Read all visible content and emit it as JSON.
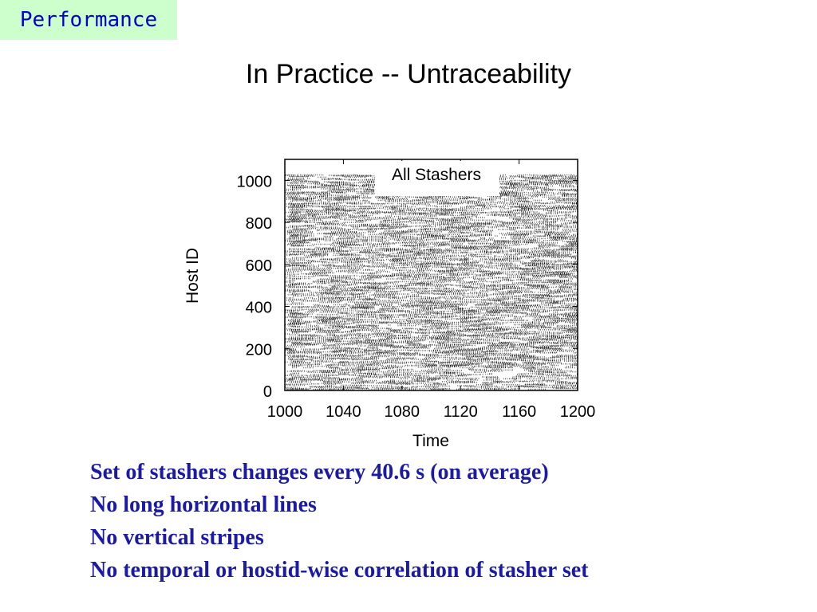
{
  "section_tag": "Performance",
  "slide_title": "In Practice -- Untraceability",
  "chart_data": {
    "type": "scatter",
    "title": "All Stashers",
    "xlabel": "Time",
    "ylabel": "Host ID",
    "xlim": [
      1000,
      1200
    ],
    "ylim": [
      0,
      1100
    ],
    "x_ticks": [
      1000,
      1040,
      1080,
      1120,
      1160,
      1200
    ],
    "y_ticks": [
      0,
      200,
      400,
      600,
      800,
      1000
    ],
    "x_tick_labels": [
      "1000",
      "1040",
      "1080",
      "1120",
      "1160",
      "1200"
    ],
    "y_tick_labels": [
      "0",
      "200",
      "400",
      "600",
      "800",
      "1000"
    ],
    "grid": false,
    "density": "dense short horizontal runs of points across host IDs 0-1024 at all times; no long horizontal lines, no vertical stripes",
    "marker_color": "#000000"
  },
  "bullets": [
    "Set of stashers changes every 40.6 s (on average)",
    "No long horizontal lines",
    "No vertical stripes",
    "No temporal or hostid-wise correlation of stasher set"
  ]
}
